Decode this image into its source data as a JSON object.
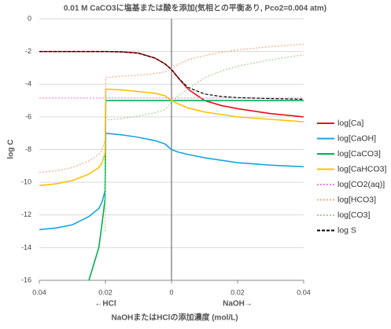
{
  "chart_data": {
    "type": "line",
    "title": "0.01 M CaCO3に塩基または酸を添加(気相との平衡あり, Pco2=0.004 atm)",
    "x_label": "NaOHまたはHClの添加濃度 (mol/L)",
    "y_label": "log C",
    "annotations": [
      "←HCl",
      "NaOH→"
    ],
    "x": [
      -0.04,
      -0.035,
      -0.03,
      -0.025,
      -0.022,
      -0.021,
      -0.0201,
      -0.0199,
      -0.015,
      -0.01,
      -0.005,
      -0.002,
      0,
      0.002,
      0.005,
      0.01,
      0.015,
      0.02,
      0.03,
      0.04
    ],
    "xlim": [
      -0.04,
      0.04
    ],
    "xticks": [
      {
        "value": -0.04,
        "label": "0.04"
      },
      {
        "value": -0.02,
        "label": "0.02"
      },
      0,
      {
        "value": 0.02,
        "label": "0.02"
      },
      {
        "value": 0.04,
        "label": "0.04"
      }
    ],
    "ylim": [
      -16,
      0
    ],
    "yticks": [
      0,
      -2,
      -4,
      -6,
      -8,
      -10,
      -12,
      -14,
      -16
    ],
    "grid": true,
    "legend": "right",
    "series": [
      {
        "name": "log[Ca]",
        "color": "#e8101a",
        "dash": "solid",
        "values": [
          -2,
          -2,
          -2,
          -2,
          -2,
          -2,
          -2,
          -2,
          -2.02,
          -2.1,
          -2.4,
          -2.75,
          -3.1,
          -3.6,
          -4.3,
          -5.0,
          -5.3,
          -5.5,
          -5.8,
          -6.0
        ]
      },
      {
        "name": "log[CaOH]",
        "color": "#16a6e0",
        "dash": "solid",
        "values": [
          -12.9,
          -12.8,
          -12.6,
          -12.1,
          -11.6,
          -11.2,
          -10.5,
          -7.0,
          -7.1,
          -7.25,
          -7.45,
          -7.65,
          -8.0,
          -8.15,
          -8.3,
          -8.5,
          -8.65,
          -8.8,
          -8.95,
          -9.05
        ]
      },
      {
        "name": "log[CaCO3]",
        "color": "#00b050",
        "dash": "solid",
        "values": [
          null,
          null,
          null,
          -16,
          -14,
          -12.5,
          -11,
          -5,
          -5,
          -5,
          -5,
          -5,
          -5,
          -5,
          -5,
          -5,
          -5,
          -5,
          -5,
          -5
        ]
      },
      {
        "name": "log[CaHCO3]",
        "color": "#ffc000",
        "dash": "solid",
        "values": [
          -10.2,
          -10.1,
          -9.9,
          -9.5,
          -9.1,
          -8.8,
          -8.2,
          -4.3,
          -4.35,
          -4.45,
          -4.55,
          -4.7,
          -5.0,
          -5.2,
          -5.45,
          -5.7,
          -5.85,
          -6.0,
          -6.15,
          -6.3
        ]
      },
      {
        "name": "log[CO2(aq)]",
        "color": "#f07cf0",
        "dash": "dotted",
        "values": [
          -4.85,
          -4.85,
          -4.85,
          -4.85,
          -4.85,
          -4.85,
          -4.85,
          -4.85,
          -4.85,
          -4.85,
          -4.85,
          -4.85,
          -4.85,
          -4.85,
          -4.85,
          -4.85,
          -4.85,
          -4.85,
          -4.85,
          -4.85
        ]
      },
      {
        "name": "log[HCO3]",
        "color": "#f4a983",
        "dash": "dotted",
        "values": [
          -9.4,
          -9.3,
          -9.1,
          -8.7,
          -8.3,
          -8.0,
          -7.4,
          -3.6,
          -3.5,
          -3.45,
          -3.35,
          -3.25,
          -3.05,
          -2.8,
          -2.5,
          -2.25,
          -2.05,
          -1.9,
          -1.7,
          -1.55
        ]
      },
      {
        "name": "log[CO3]",
        "color": "#a9d18e",
        "dash": "dotted",
        "values": [
          null,
          null,
          null,
          null,
          null,
          null,
          -13,
          -6.2,
          -6.1,
          -5.95,
          -5.75,
          -5.55,
          -5.1,
          -4.7,
          -4.3,
          -3.6,
          -3.2,
          -2.9,
          -2.5,
          -2.2
        ]
      },
      {
        "name": "log S",
        "color": "#000000",
        "dash": "dashed",
        "values": [
          -2,
          -2,
          -2,
          -2,
          -2,
          -2,
          -2,
          -2,
          -2.02,
          -2.1,
          -2.4,
          -2.75,
          -3.1,
          -3.6,
          -4.2,
          -4.6,
          -4.75,
          -4.82,
          -4.88,
          -4.92
        ]
      }
    ]
  }
}
